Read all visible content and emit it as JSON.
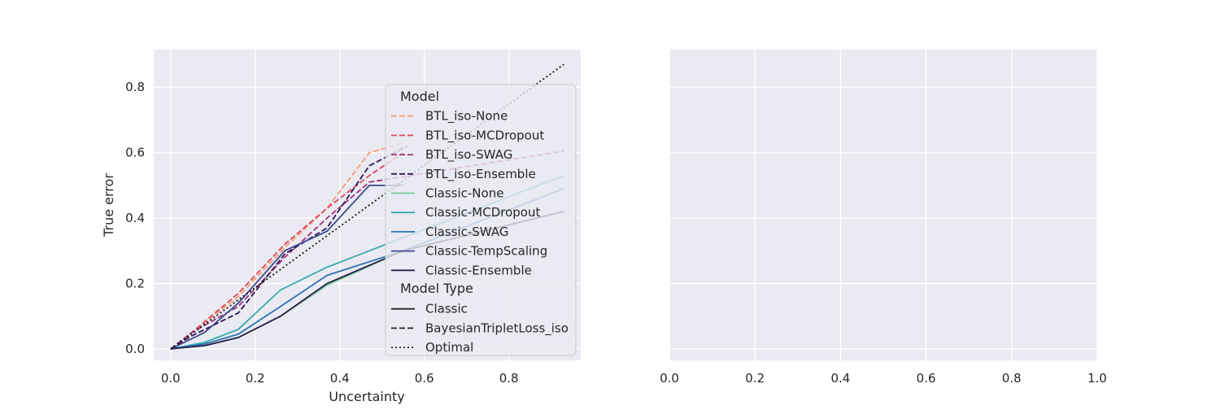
{
  "chart_data": [
    {
      "type": "line",
      "title": "",
      "xlabel": "Uncertainty",
      "ylabel": "True error",
      "xlim": [
        -0.04,
        0.97
      ],
      "ylim": [
        -0.035,
        0.915
      ],
      "xticks": [
        "0.0",
        "0.2",
        "0.4",
        "0.6",
        "0.8"
      ],
      "xtick_values": [
        0.0,
        0.2,
        0.4,
        0.6,
        0.8
      ],
      "yticks": [
        "0.0",
        "0.2",
        "0.4",
        "0.6",
        "0.8"
      ],
      "ytick_values": [
        0.0,
        0.2,
        0.4,
        0.6,
        0.8
      ],
      "grid": true,
      "background": "#EAEAF2",
      "legend_placement": "center-right",
      "legend": {
        "title": "Model",
        "type_title": "Model Type",
        "types": [
          {
            "name": "Classic",
            "dash": "solid"
          },
          {
            "name": "BayesianTripletLoss_iso",
            "dash": "dashed"
          },
          {
            "name": "Optimal",
            "dash": "dotted"
          }
        ]
      },
      "series": [
        {
          "name": "BTL_iso-None",
          "color": "#F99A70",
          "style": "dashed",
          "points": [
            [
              0.0,
              0.0
            ],
            [
              0.05,
              0.05
            ],
            [
              0.16,
              0.16
            ],
            [
              0.27,
              0.31
            ],
            [
              0.37,
              0.43
            ],
            [
              0.47,
              0.6
            ],
            [
              0.55,
              0.63
            ]
          ]
        },
        {
          "name": "BTL_iso-MCDropout",
          "color": "#E0465B",
          "style": "dashed",
          "points": [
            [
              0.0,
              0.0
            ],
            [
              0.05,
              0.05
            ],
            [
              0.16,
              0.17
            ],
            [
              0.27,
              0.32
            ],
            [
              0.37,
              0.43
            ],
            [
              0.47,
              0.53
            ],
            [
              0.55,
              0.6
            ]
          ]
        },
        {
          "name": "BTL_iso-SWAG",
          "color": "#A2307B",
          "style": "dashed",
          "points": [
            [
              0.0,
              0.0
            ],
            [
              0.05,
              0.05
            ],
            [
              0.16,
              0.13
            ],
            [
              0.27,
              0.28
            ],
            [
              0.37,
              0.4
            ],
            [
              0.47,
              0.51
            ],
            [
              0.93,
              0.605
            ]
          ]
        },
        {
          "name": "BTL_iso-Ensemble",
          "color": "#311658",
          "style": "dashed",
          "points": [
            [
              0.0,
              0.0
            ],
            [
              0.05,
              0.04
            ],
            [
              0.16,
              0.11
            ],
            [
              0.27,
              0.29
            ],
            [
              0.37,
              0.37
            ],
            [
              0.47,
              0.56
            ],
            [
              0.56,
              0.62
            ]
          ]
        },
        {
          "name": "Classic-None",
          "color": "#6FCF97",
          "style": "solid",
          "points": [
            [
              0.0,
              0.0
            ],
            [
              0.08,
              0.01
            ],
            [
              0.16,
              0.035
            ],
            [
              0.26,
              0.1
            ],
            [
              0.37,
              0.195
            ],
            [
              0.55,
              0.3
            ],
            [
              0.93,
              0.42
            ]
          ]
        },
        {
          "name": "Classic-MCDropout",
          "color": "#38ABAB",
          "style": "solid",
          "points": [
            [
              0.0,
              0.0
            ],
            [
              0.08,
              0.02
            ],
            [
              0.16,
              0.06
            ],
            [
              0.26,
              0.18
            ],
            [
              0.37,
              0.25
            ],
            [
              0.55,
              0.34
            ],
            [
              0.93,
              0.53
            ]
          ]
        },
        {
          "name": "Classic-SWAG",
          "color": "#2D73B4",
          "style": "solid",
          "points": [
            [
              0.0,
              0.0
            ],
            [
              0.08,
              0.015
            ],
            [
              0.16,
              0.045
            ],
            [
              0.26,
              0.13
            ],
            [
              0.37,
              0.225
            ],
            [
              0.55,
              0.3
            ],
            [
              0.93,
              0.49
            ]
          ]
        },
        {
          "name": "Classic-TempScaling",
          "color": "#3D4A8C",
          "style": "solid",
          "points": [
            [
              0.0,
              0.0
            ],
            [
              0.08,
              0.05
            ],
            [
              0.16,
              0.14
            ],
            [
              0.27,
              0.3
            ],
            [
              0.37,
              0.36
            ],
            [
              0.47,
              0.5
            ],
            [
              0.55,
              0.5
            ]
          ]
        },
        {
          "name": "Classic-Ensemble",
          "color": "#2A1E48",
          "style": "solid",
          "points": [
            [
              0.0,
              0.0
            ],
            [
              0.08,
              0.01
            ],
            [
              0.16,
              0.035
            ],
            [
              0.26,
              0.1
            ],
            [
              0.37,
              0.2
            ],
            [
              0.55,
              0.3
            ],
            [
              0.93,
              0.42
            ]
          ]
        },
        {
          "name": "Optimal",
          "color": "#111111",
          "style": "dotted",
          "in_model_legend": false,
          "points": [
            [
              0.0,
              0.0
            ],
            [
              0.93,
              0.87
            ]
          ]
        }
      ]
    },
    {
      "type": "line",
      "title": "",
      "xlabel": "",
      "ylabel": "",
      "xlim": [
        0.0,
        1.0
      ],
      "ylim": [
        -0.035,
        0.915
      ],
      "xticks": [
        "0.0",
        "0.2",
        "0.4",
        "0.6",
        "0.8",
        "1.0"
      ],
      "xtick_values": [
        0.0,
        0.2,
        0.4,
        0.6,
        0.8,
        1.0
      ],
      "ytick_values": [
        0.0,
        0.2,
        0.4,
        0.6,
        0.8
      ],
      "grid": true,
      "background": "#EAEAF2",
      "series": []
    }
  ]
}
